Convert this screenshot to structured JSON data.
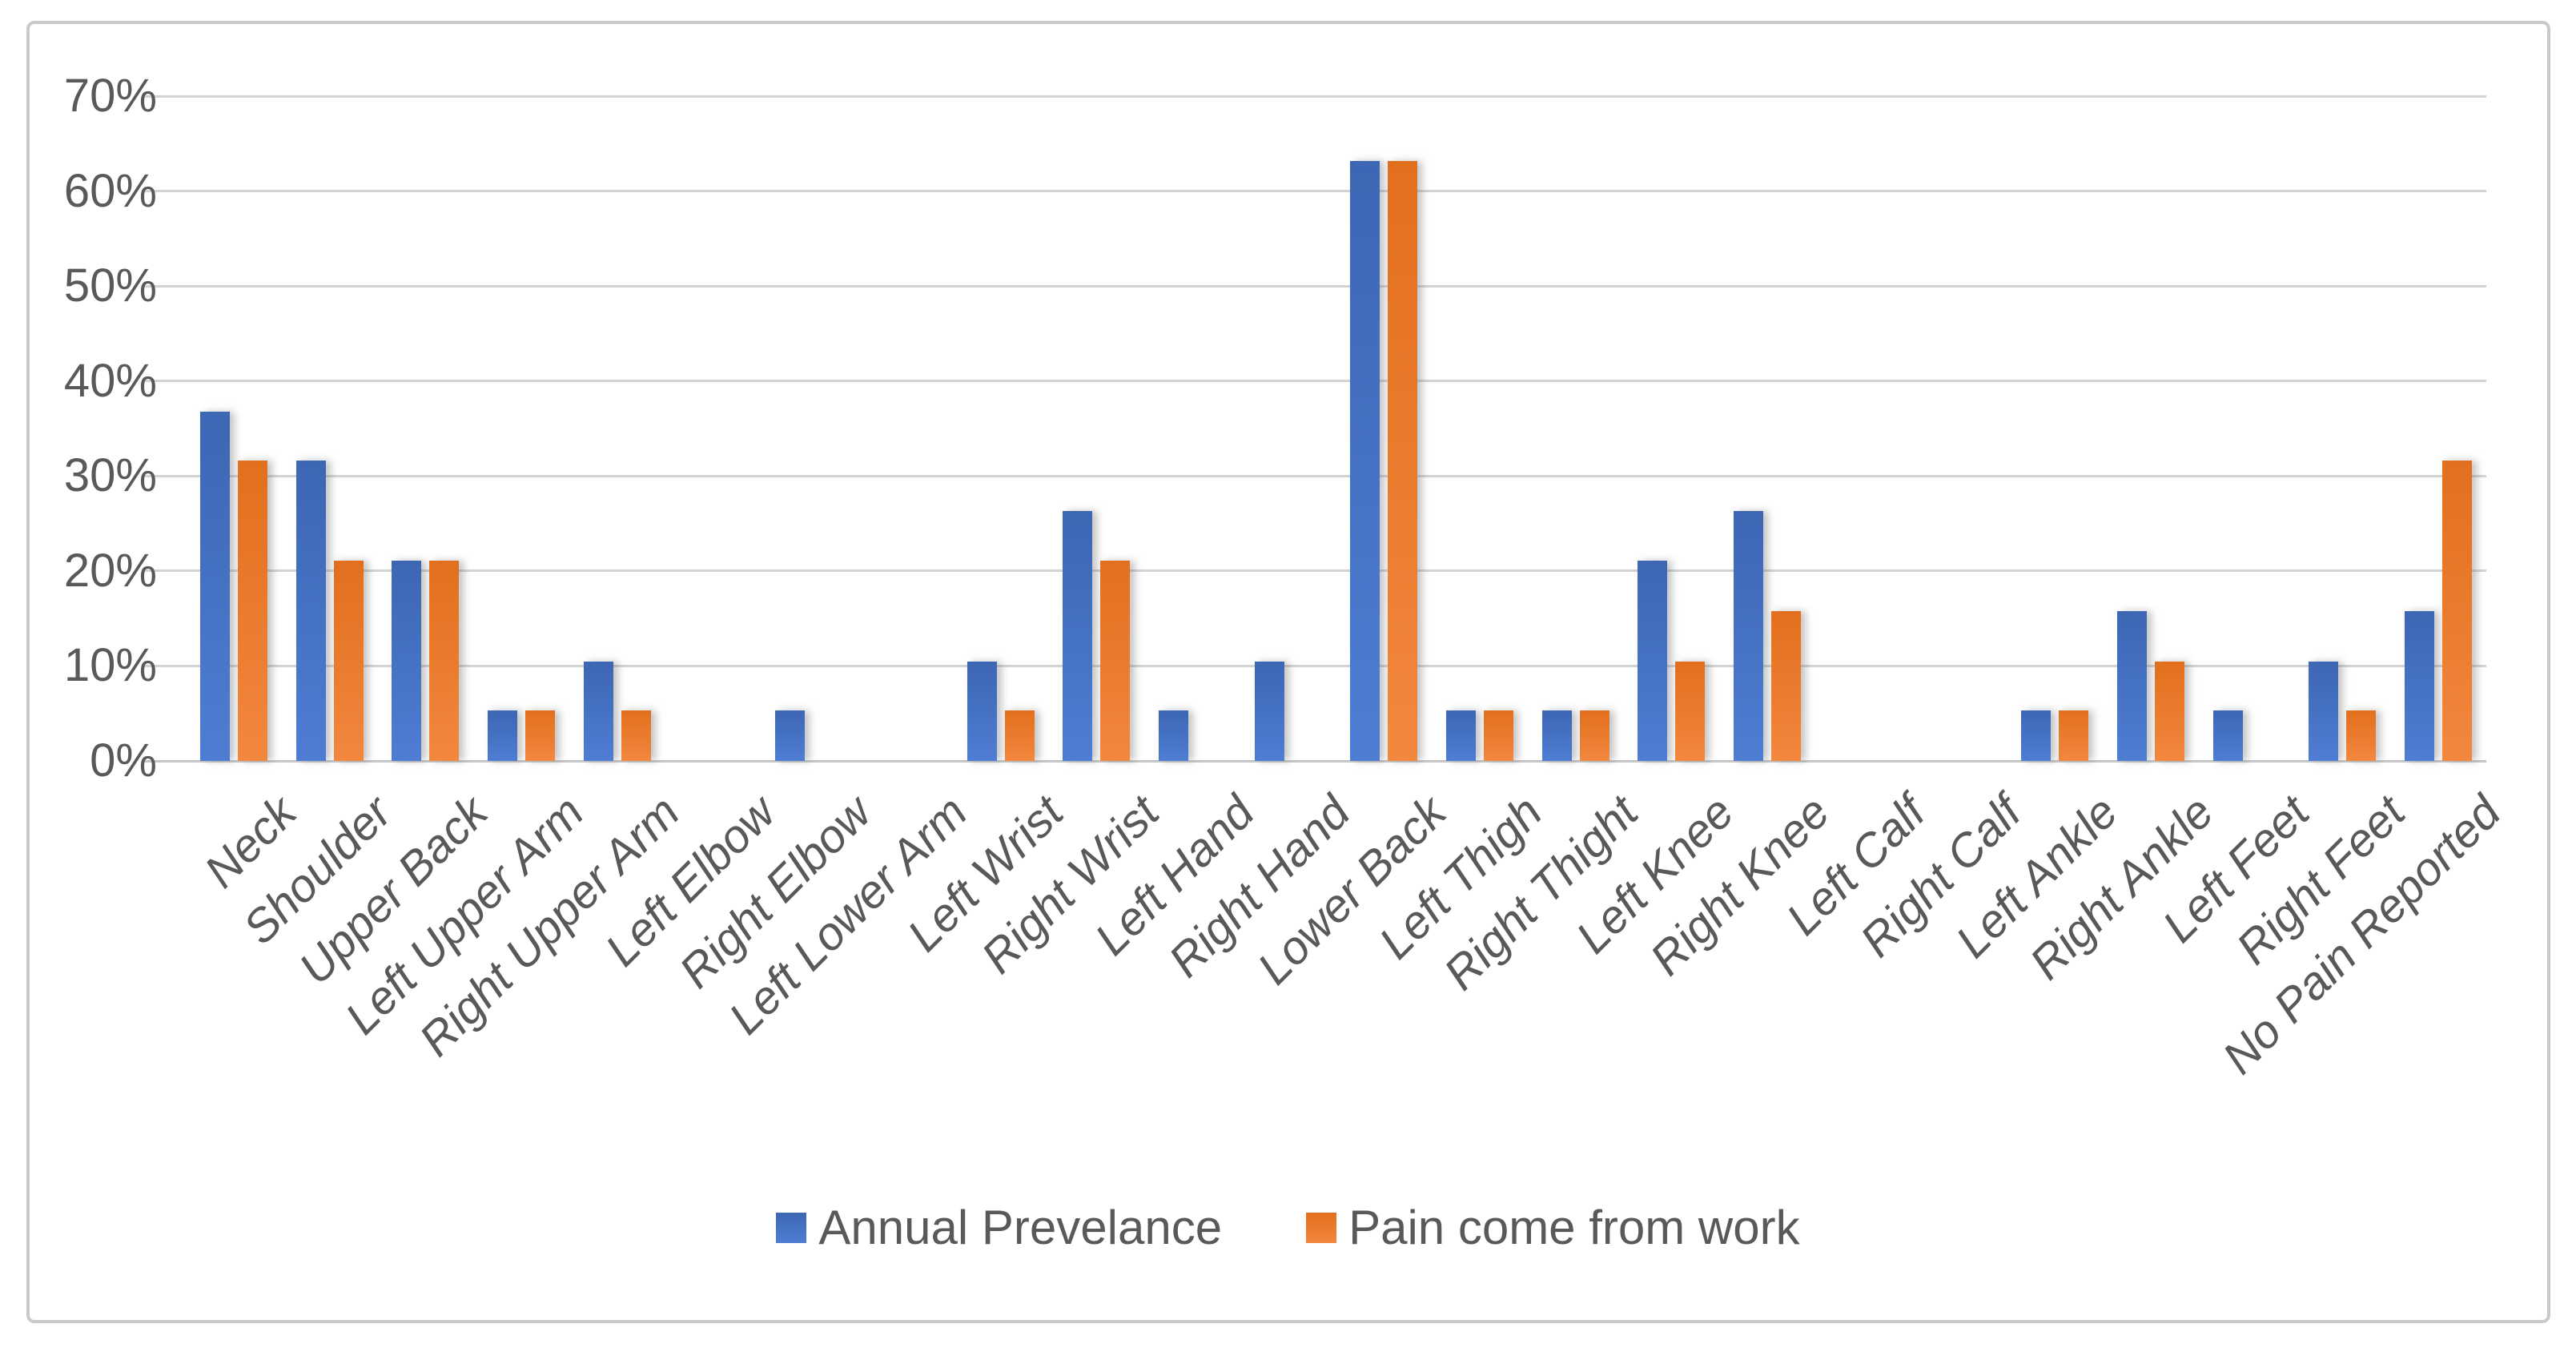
{
  "chart_data": {
    "type": "bar",
    "title": "",
    "xlabel": "",
    "ylabel": "",
    "ylim": [
      0,
      70
    ],
    "grid": true,
    "legend_position": "bottom",
    "yticks": [
      "0%",
      "10%",
      "20%",
      "30%",
      "40%",
      "50%",
      "60%",
      "70%"
    ],
    "categories": [
      "Neck",
      "Shoulder",
      "Upper Back",
      "Left Upper Arm",
      "Right Upper Arm",
      "Left Elbow",
      "Right Elbow",
      "Left Lower Arm",
      "Left Wrist",
      "Right Wrist",
      "Left Hand",
      "Right Hand",
      "Lower Back",
      "Left Thigh",
      "Right Thight",
      "Left Knee",
      "Right Knee",
      "Left Calf",
      "Right Calf",
      "Left Ankle",
      "Right Ankle",
      "Left Feet",
      "Right Feet",
      "No Pain Reported"
    ],
    "series": [
      {
        "name": "Annual Prevelance",
        "color": "#4472C4",
        "values": [
          36.8,
          31.6,
          21.1,
          5.3,
          10.5,
          0,
          5.3,
          0,
          10.5,
          26.3,
          5.3,
          10.5,
          63.2,
          5.3,
          5.3,
          21.1,
          26.3,
          0,
          0,
          5.3,
          15.8,
          5.3,
          10.5,
          15.8
        ]
      },
      {
        "name": "Pain come from work",
        "color": "#ED7D31",
        "values": [
          31.6,
          21.1,
          21.1,
          5.3,
          5.3,
          0,
          0,
          0,
          5.3,
          21.1,
          0,
          0,
          63.2,
          5.3,
          5.3,
          10.5,
          15.8,
          0,
          0,
          5.3,
          10.5,
          0,
          5.3,
          31.6
        ]
      }
    ],
    "colors": {
      "series_blue": "#4472C4",
      "series_orange": "#ED7D31",
      "gridline": "#D3D3D3",
      "axis_text": "#595959",
      "frame_border": "#C9C9C9",
      "background": "#FFFFFF"
    }
  }
}
